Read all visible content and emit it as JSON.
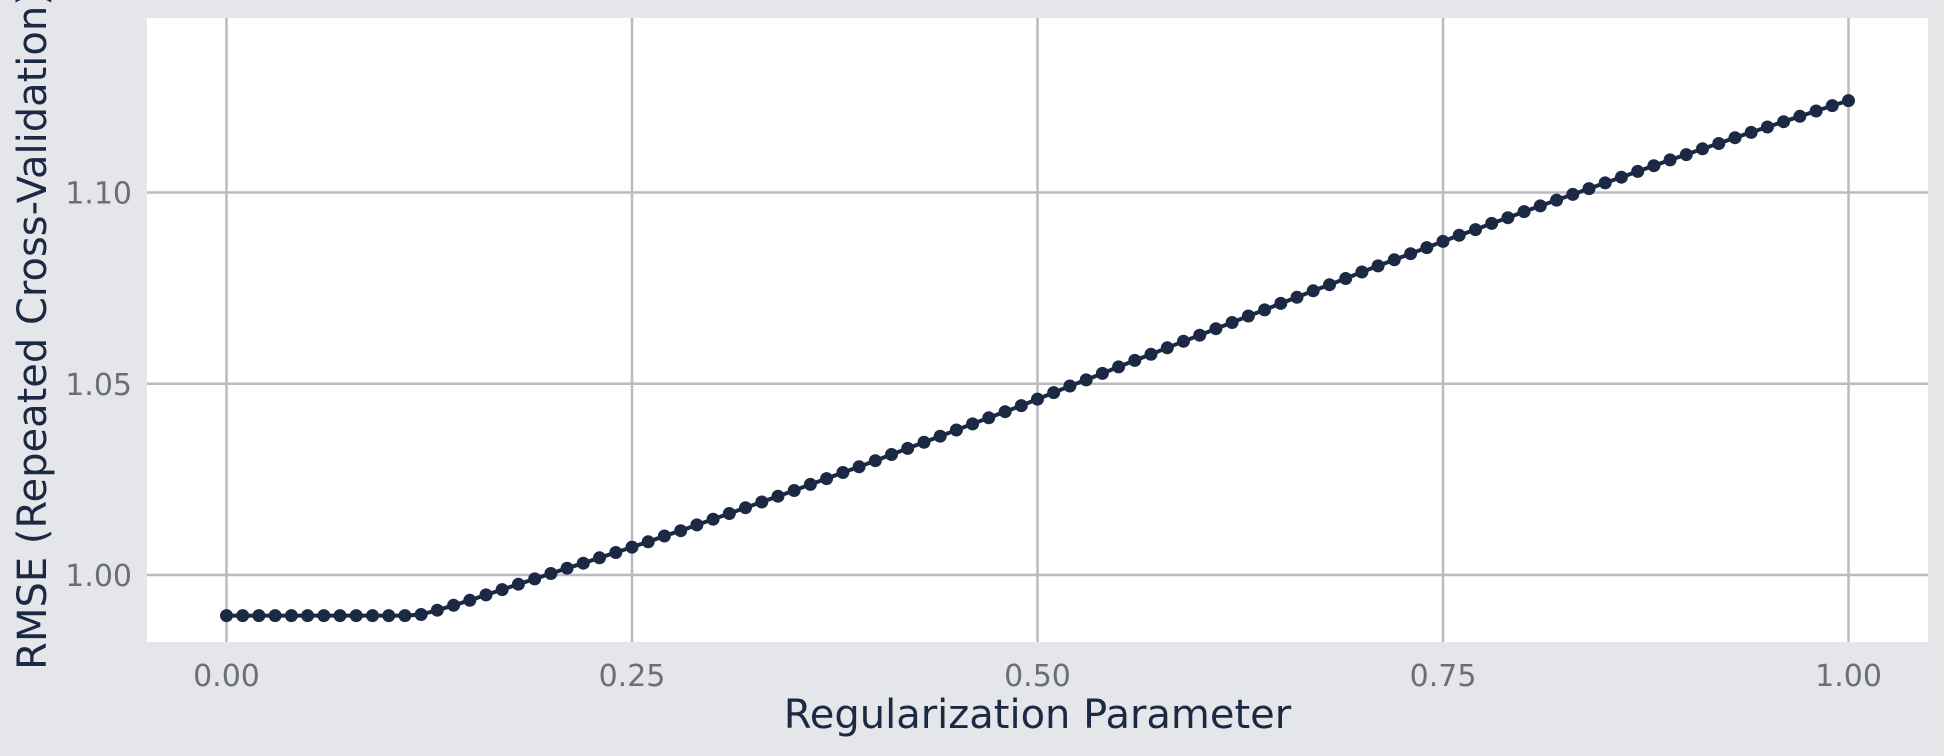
{
  "chart_data": {
    "type": "line",
    "xlabel": "Regularization Parameter",
    "ylabel": "RMSE (Repeated Cross-Validation)",
    "xlim": [
      -0.049,
      1.049
    ],
    "ylim": [
      0.9825,
      1.1456
    ],
    "x_ticks": [
      0,
      0.25,
      0.5,
      0.75,
      1
    ],
    "x_tick_labels": [
      "0.00",
      "0.25",
      "0.50",
      "0.75",
      "1.00"
    ],
    "y_ticks": [
      1.0,
      1.05,
      1.1
    ],
    "y_tick_labels": [
      "1.00",
      "1.05",
      "1.10"
    ],
    "grid": true,
    "legend": "none",
    "marker_color": "#1c2944",
    "background": "#ffffff",
    "outer_background": "#e5e6ea",
    "series": [
      {
        "x": [
          0,
          0.01,
          0.02,
          0.03,
          0.04,
          0.05,
          0.06,
          0.07,
          0.08,
          0.09,
          0.1,
          0.11,
          0.12,
          0.13,
          0.14,
          0.15,
          0.16,
          0.17,
          0.18,
          0.19,
          0.2,
          0.21,
          0.22,
          0.23,
          0.24,
          0.25,
          0.26,
          0.27,
          0.28,
          0.29,
          0.3,
          0.31,
          0.32,
          0.33,
          0.34,
          0.35,
          0.36,
          0.37,
          0.38,
          0.39,
          0.4,
          0.41,
          0.42,
          0.43,
          0.44,
          0.45,
          0.46,
          0.47,
          0.48,
          0.49,
          0.5,
          0.51,
          0.52,
          0.53,
          0.54,
          0.55,
          0.56,
          0.57,
          0.58,
          0.59,
          0.6,
          0.61,
          0.62,
          0.63,
          0.64,
          0.65,
          0.66,
          0.67,
          0.68,
          0.69,
          0.7,
          0.71,
          0.72,
          0.73,
          0.74,
          0.75,
          0.76,
          0.77,
          0.78,
          0.79,
          0.8,
          0.81,
          0.82,
          0.83,
          0.84,
          0.85,
          0.86,
          0.87,
          0.88,
          0.89,
          0.9,
          0.91,
          0.92,
          0.93,
          0.94,
          0.95,
          0.96,
          0.97,
          0.98,
          0.99,
          1
        ],
        "y": [
          0.9894,
          0.9894,
          0.9894,
          0.9894,
          0.9894,
          0.9894,
          0.9894,
          0.9894,
          0.9894,
          0.9894,
          0.9894,
          0.9894,
          0.9897,
          0.9908,
          0.9921,
          0.9934,
          0.9948,
          0.9962,
          0.9976,
          0.999,
          1.0004,
          1.0018,
          1.0031,
          1.0045,
          1.0059,
          1.0073,
          1.0087,
          1.0102,
          1.0116,
          1.0131,
          1.0146,
          1.0161,
          1.0176,
          1.0191,
          1.0206,
          1.0221,
          1.0237,
          1.0252,
          1.0268,
          1.0283,
          1.0299,
          1.0315,
          1.0331,
          1.0347,
          1.0363,
          1.0379,
          1.0395,
          1.0411,
          1.0427,
          1.0443,
          1.046,
          1.0477,
          1.0494,
          1.051,
          1.0527,
          1.0544,
          1.0561,
          1.0577,
          1.0594,
          1.0611,
          1.0627,
          1.0644,
          1.066,
          1.0677,
          1.0693,
          1.071,
          1.0726,
          1.0743,
          1.0759,
          1.0775,
          1.0792,
          1.0808,
          1.0824,
          1.084,
          1.0856,
          1.0872,
          1.0888,
          1.0903,
          1.0919,
          1.0934,
          1.095,
          1.0965,
          1.098,
          1.0995,
          1.101,
          1.1025,
          1.104,
          1.1055,
          1.107,
          1.1085,
          1.1099,
          1.1114,
          1.1128,
          1.1143,
          1.1157,
          1.1171,
          1.1185,
          1.1199,
          1.1213,
          1.1227,
          1.124
        ]
      }
    ]
  }
}
